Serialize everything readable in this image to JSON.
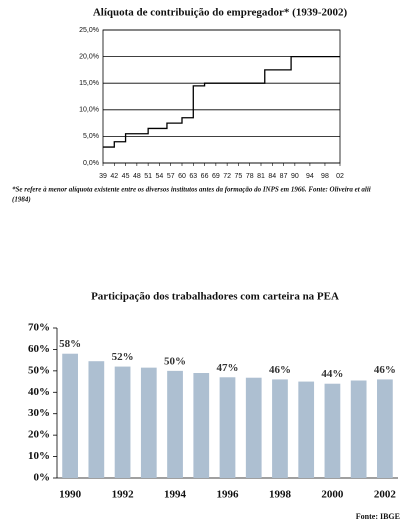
{
  "chart_data": [
    {
      "type": "line",
      "title": "Alíquota de contribuição do empregador* (1939-2002)",
      "note_line1": "*Se refere à menor alíquota existente entre os diversos institutos antes da formação do INPS em 1966. Fonte: Oliveira et alii",
      "note_line2": "(1984)",
      "series": [
        {
          "color": "#000000",
          "x": [
            1939,
            1942,
            1942,
            1945,
            1945,
            1951,
            1951,
            1956,
            1956,
            1960,
            1960,
            1963,
            1963,
            1966,
            1966,
            1982,
            1982,
            1989,
            1989,
            2002
          ],
          "values": [
            3,
            3,
            4,
            4,
            5.5,
            5.5,
            6.5,
            6.5,
            7.5,
            7.5,
            8.5,
            8.5,
            14.5,
            14.5,
            15,
            15,
            17.5,
            17.5,
            20,
            20
          ]
        }
      ],
      "xlim": [
        1939,
        2002
      ],
      "xticks": [
        {
          "value": 1939,
          "label": "39"
        },
        {
          "value": 1942,
          "label": "42"
        },
        {
          "value": 1945,
          "label": "45"
        },
        {
          "value": 1948,
          "label": "48"
        },
        {
          "value": 1951,
          "label": "51"
        },
        {
          "value": 1954,
          "label": "54"
        },
        {
          "value": 1957,
          "label": "57"
        },
        {
          "value": 1960,
          "label": "60"
        },
        {
          "value": 1963,
          "label": "63"
        },
        {
          "value": 1966,
          "label": "66"
        },
        {
          "value": 1969,
          "label": "69"
        },
        {
          "value": 1972,
          "label": "72"
        },
        {
          "value": 1975,
          "label": "75"
        },
        {
          "value": 1978,
          "label": "78"
        },
        {
          "value": 1981,
          "label": "81"
        },
        {
          "value": 1984,
          "label": "84"
        },
        {
          "value": 1987,
          "label": "87"
        },
        {
          "value": 1990,
          "label": "90"
        },
        {
          "value": 1994,
          "label": "94"
        },
        {
          "value": 1998,
          "label": "98"
        },
        {
          "value": 2002,
          "label": "02"
        }
      ],
      "ylim": [
        0,
        25
      ],
      "yticks": [
        {
          "value": 0,
          "label": "0,0%"
        },
        {
          "value": 5,
          "label": "5,0%"
        },
        {
          "value": 10,
          "label": "10,0%"
        },
        {
          "value": 15,
          "label": "15,0%"
        },
        {
          "value": 20,
          "label": "20,0%"
        },
        {
          "value": 25,
          "label": "25,0%"
        }
      ],
      "grid": true
    },
    {
      "type": "bar",
      "title": "Participação dos trabalhadores com carteira na PEA",
      "source": "Fonte: IBGE",
      "categories": [
        "1990",
        null,
        "1992",
        null,
        "1994",
        null,
        "1996",
        null,
        "1998",
        null,
        "2000",
        null,
        "2002"
      ],
      "values": [
        58,
        54.5,
        52,
        51.5,
        50,
        49,
        47,
        46.8,
        46,
        45,
        44,
        45.5,
        46
      ],
      "value_labels": [
        "58%",
        null,
        "52%",
        null,
        "50%",
        null,
        "47%",
        null,
        "46%",
        null,
        "44%",
        null,
        "46%"
      ],
      "color": "#adbfd1",
      "ylim": [
        0,
        70
      ],
      "yticks": [
        {
          "value": 0,
          "label": "0%"
        },
        {
          "value": 10,
          "label": "10%"
        },
        {
          "value": 20,
          "label": "20%"
        },
        {
          "value": 30,
          "label": "30%"
        },
        {
          "value": 40,
          "label": "40%"
        },
        {
          "value": 50,
          "label": "50%"
        },
        {
          "value": 60,
          "label": "60%"
        },
        {
          "value": 70,
          "label": "70%"
        }
      ],
      "grid": false
    }
  ]
}
